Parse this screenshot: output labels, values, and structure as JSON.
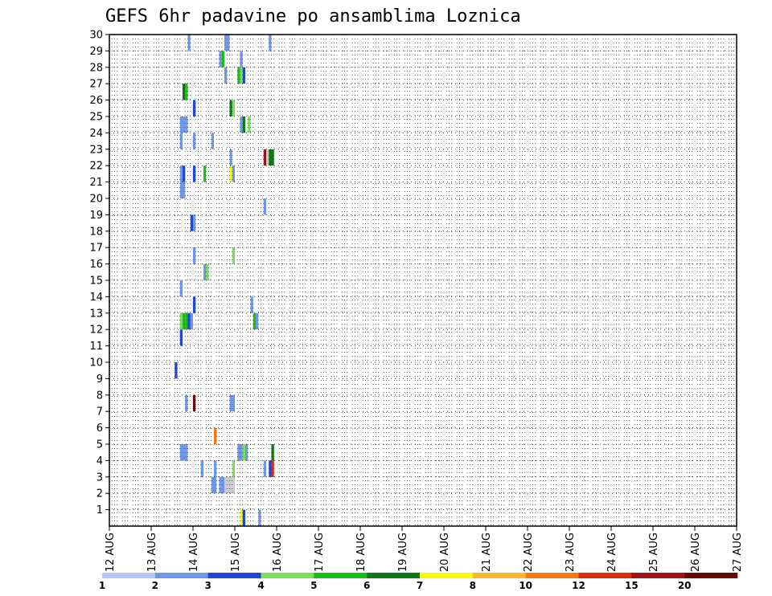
{
  "chart_data": {
    "type": "heatmap",
    "title": "GEFS 6hr padavine po ansamblima Loznica",
    "x_tick_labels": [
      "12 AUG",
      "13 AUG",
      "14 AUG",
      "15 AUG",
      "16 AUG",
      "17 AUG",
      "18 AUG",
      "19 AUG",
      "20 AUG",
      "21 AUG",
      "22 AUG",
      "23 AUG",
      "24 AUG",
      "25 AUG",
      "26 AUG",
      "27 AUG"
    ],
    "y_tick_labels": [
      "1",
      "2",
      "3",
      "4",
      "5",
      "6",
      "7",
      "8",
      "9",
      "10",
      "11",
      "12",
      "13",
      "14",
      "15",
      "16",
      "17",
      "18",
      "19",
      "20",
      "21",
      "22",
      "23",
      "24",
      "25",
      "26",
      "27",
      "28",
      "29",
      "30"
    ],
    "xlim": [
      0,
      60
    ],
    "ylim": [
      0,
      30
    ],
    "grid": true,
    "colorbar": {
      "colors": [
        "#b4c8f5",
        "#6e96eb",
        "#1e46d7",
        "#78e15a",
        "#19be19",
        "#0a7814",
        "#fafa00",
        "#ffb432",
        "#f57814",
        "#dc2d0a",
        "#a01414",
        "#640a0a"
      ],
      "labels": [
        "1",
        "2",
        "3",
        "4",
        "5",
        "6",
        "7",
        "8",
        "10",
        "12",
        "15",
        "20"
      ]
    },
    "cells": [
      {
        "x": 25,
        "y": 9,
        "v": 2
      },
      {
        "x": 27,
        "y": 4,
        "v": 1
      },
      {
        "x": 27,
        "y": 11,
        "v": 2
      },
      {
        "x": 27,
        "y": 12,
        "v": 3
      },
      {
        "x": 27,
        "y": 14,
        "v": 1
      },
      {
        "x": 27,
        "y": 20,
        "v": 1
      },
      {
        "x": 27,
        "y": 21,
        "v": 1
      },
      {
        "x": 27,
        "y": 23,
        "v": 1
      },
      {
        "x": 27,
        "y": 24,
        "v": 1
      },
      {
        "x": 28,
        "y": 4,
        "v": 1
      },
      {
        "x": 28,
        "y": 12,
        "v": 4
      },
      {
        "x": 28,
        "y": 20,
        "v": 1
      },
      {
        "x": 28,
        "y": 21,
        "v": 2
      },
      {
        "x": 28,
        "y": 24,
        "v": 1
      },
      {
        "x": 28,
        "y": 26,
        "v": 5
      },
      {
        "x": 29,
        "y": 4,
        "v": 1
      },
      {
        "x": 29,
        "y": 7,
        "v": 1
      },
      {
        "x": 29,
        "y": 12,
        "v": 4
      },
      {
        "x": 29,
        "y": 24,
        "v": 1
      },
      {
        "x": 29,
        "y": 26,
        "v": 4
      },
      {
        "x": 30,
        "y": 12,
        "v": 2
      },
      {
        "x": 30,
        "y": 29,
        "v": 1
      },
      {
        "x": 31,
        "y": 12,
        "v": 1
      },
      {
        "x": 31,
        "y": 18,
        "v": 2
      },
      {
        "x": 32,
        "y": 7,
        "v": 11
      },
      {
        "x": 32,
        "y": 13,
        "v": 2
      },
      {
        "x": 32,
        "y": 16,
        "v": 1
      },
      {
        "x": 32,
        "y": 18,
        "v": 1
      },
      {
        "x": 32,
        "y": 21,
        "v": 2
      },
      {
        "x": 32,
        "y": 23,
        "v": 1
      },
      {
        "x": 32,
        "y": 25,
        "v": 2
      },
      {
        "x": 35,
        "y": 3,
        "v": 1
      },
      {
        "x": 36,
        "y": 15,
        "v": 1
      },
      {
        "x": 36,
        "y": 21,
        "v": 4
      },
      {
        "x": 37,
        "y": 15,
        "v": 3
      },
      {
        "x": 39,
        "y": 2,
        "v": 1
      },
      {
        "x": 39,
        "y": 23,
        "v": 1
      },
      {
        "x": 40,
        "y": 2,
        "v": 1
      },
      {
        "x": 40,
        "y": 3,
        "v": 1
      },
      {
        "x": 40,
        "y": 5,
        "v": 8
      },
      {
        "x": 42,
        "y": 2,
        "v": 1
      },
      {
        "x": 42,
        "y": 28,
        "v": 1
      },
      {
        "x": 43,
        "y": 2,
        "v": 1
      },
      {
        "x": 43,
        "y": 28,
        "v": 4
      },
      {
        "x": 44,
        "y": 2,
        "v": 12
      },
      {
        "x": 44,
        "y": 27,
        "v": 1
      },
      {
        "x": 44,
        "y": 29,
        "v": 1
      },
      {
        "x": 45,
        "y": 2,
        "v": 13
      },
      {
        "x": 45,
        "y": 29,
        "v": 1
      },
      {
        "x": 46,
        "y": 2,
        "v": 13
      },
      {
        "x": 46,
        "y": 7,
        "v": 1
      },
      {
        "x": 46,
        "y": 21,
        "v": 6
      },
      {
        "x": 46,
        "y": 22,
        "v": 1
      },
      {
        "x": 46,
        "y": 25,
        "v": 5
      },
      {
        "x": 47,
        "y": 2,
        "v": 13
      },
      {
        "x": 47,
        "y": 3,
        "v": 3
      },
      {
        "x": 47,
        "y": 7,
        "v": 1
      },
      {
        "x": 47,
        "y": 16,
        "v": 3
      },
      {
        "x": 47,
        "y": 21,
        "v": 1
      },
      {
        "x": 47,
        "y": 25,
        "v": 3
      },
      {
        "x": 49,
        "y": 4,
        "v": 1
      },
      {
        "x": 49,
        "y": 27,
        "v": 4
      },
      {
        "x": 50,
        "y": 0,
        "v": 6
      },
      {
        "x": 50,
        "y": 4,
        "v": 1
      },
      {
        "x": 50,
        "y": 24,
        "v": 1
      },
      {
        "x": 50,
        "y": 27,
        "v": 3
      },
      {
        "x": 50,
        "y": 28,
        "v": 1
      },
      {
        "x": 51,
        "y": 0,
        "v": 2
      },
      {
        "x": 51,
        "y": 4,
        "v": 3
      },
      {
        "x": 51,
        "y": 24,
        "v": 5
      },
      {
        "x": 51,
        "y": 27,
        "v": 2
      },
      {
        "x": 52,
        "y": 4,
        "v": 1
      },
      {
        "x": 53,
        "y": 24,
        "v": 3
      },
      {
        "x": 54,
        "y": 13,
        "v": 1
      },
      {
        "x": 55,
        "y": 12,
        "v": 4
      },
      {
        "x": 56,
        "y": -1,
        "v": 1
      },
      {
        "x": 56,
        "y": 12,
        "v": 1
      },
      {
        "x": 57,
        "y": 0,
        "v": 1
      },
      {
        "x": 59,
        "y": 3,
        "v": 1
      },
      {
        "x": 59,
        "y": 19,
        "v": 1
      },
      {
        "x": 59,
        "y": 22,
        "v": 10
      },
      {
        "x": 60,
        "y": 22,
        "v": 13
      },
      {
        "x": 61,
        "y": 3,
        "v": 2
      },
      {
        "x": 61,
        "y": 22,
        "v": 5
      },
      {
        "x": 61,
        "y": 29,
        "v": 1
      },
      {
        "x": 62,
        "y": 3,
        "v": 9
      },
      {
        "x": 62,
        "y": 4,
        "v": 5
      },
      {
        "x": 62,
        "y": 22,
        "v": 5
      }
    ]
  }
}
